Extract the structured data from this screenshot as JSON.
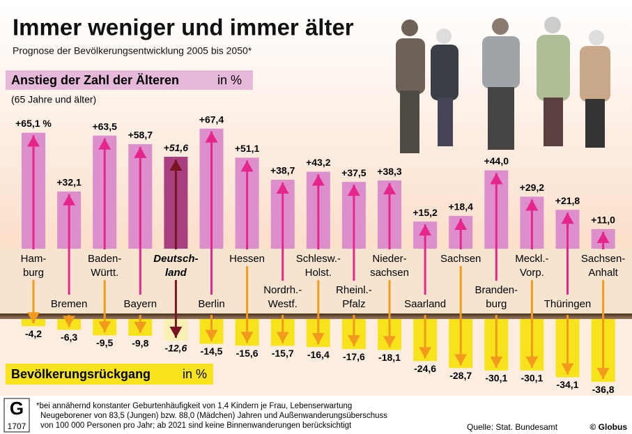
{
  "title": "Immer weniger und immer älter",
  "subtitle": "Prognose der Bevölkerungsentwicklung 2005 bis 2050*",
  "chart_data": {
    "type": "bar",
    "categories": [
      [
        "Ham-",
        "burg"
      ],
      [
        "Bremen"
      ],
      [
        "Baden-",
        "Württ."
      ],
      [
        "Bayern"
      ],
      [
        "Deutsch-",
        "land"
      ],
      [
        "Berlin"
      ],
      [
        "Hessen"
      ],
      [
        "Nordrh.-",
        "Westf."
      ],
      [
        "Schlesw.-",
        "Holst."
      ],
      [
        "Rheinl.-",
        "Pfalz"
      ],
      [
        "Nieder-",
        "sachsen"
      ],
      [
        "Saarland"
      ],
      [
        "Sachsen"
      ],
      [
        "Branden-",
        "burg"
      ],
      [
        "Meckl.-",
        "Vorp."
      ],
      [
        "Thüringen"
      ],
      [
        "Sachsen-",
        "Anhalt"
      ]
    ],
    "ylim": [
      0,
      70
    ],
    "y2lim": [
      -40,
      0
    ],
    "highlight": 4,
    "series": [
      {
        "name": "Anstieg der Zahl der Älteren",
        "unit": "in %",
        "note": "(65 Jahre und älter)",
        "axis": "y",
        "color": "#dc8fca",
        "arrow_color": "#e6268f",
        "highlight_color": "#a8407f",
        "highlight_arrow_color": "#7a1420",
        "label_color": "#d6a9c9",
        "values": [
          65.1,
          32.1,
          63.5,
          58.7,
          51.6,
          67.4,
          51.1,
          38.7,
          43.2,
          37.5,
          38.3,
          15.2,
          18.4,
          44.0,
          29.2,
          21.8,
          11.0
        ],
        "value_labels": [
          "+65,1 %",
          "+32,1",
          "+63,5",
          "+58,7",
          "+51,6",
          "+67,4",
          "+51,1",
          "+38,7",
          "+43,2",
          "+37,5",
          "+38,3",
          "+15,2",
          "+18,4",
          "+44,0",
          "+29,2",
          "+21,8",
          "+11,0"
        ]
      },
      {
        "name": "Bevölkerungsrückgang",
        "unit": "in %",
        "axis": "y2",
        "color": "#f7e31b",
        "arrow_color": "#f29a1e",
        "highlight_color": "#f8f0b4",
        "highlight_arrow_color": "#7a1420",
        "label_color": "#f7e31b",
        "values": [
          -4.2,
          -6.3,
          -9.5,
          -9.8,
          -12.6,
          -14.5,
          -15.6,
          -15.7,
          -16.4,
          -17.6,
          -18.1,
          -24.6,
          -28.7,
          -30.1,
          -30.1,
          -34.1,
          -36.8
        ],
        "value_labels": [
          "-4,2",
          "-6,3",
          "-9,5",
          "-9,8",
          "-12,6",
          "-14,5",
          "-15,6",
          "-15,7",
          "-16,4",
          "-17,6",
          "-18,1",
          "-24,6",
          "-28,7",
          "-30,1",
          "-30,1",
          "-34,1",
          "-36,8"
        ]
      }
    ]
  },
  "footnote": [
    "*bei annähernd konstanter Geburtenhäufigkeit von 1,4 Kindern je Frau, Lebenserwartung",
    "Neugeborener von 83,5 (Jungen) bzw. 88,0 (Mädchen) Jahren und Außenwanderungsüberschuss",
    "von 100 000 Personen pro Jahr; ab 2021 sind keine Binnenwanderungen berücksichtigt"
  ],
  "source": "Quelle: Stat. Bundesamt",
  "copyright": "© Globus",
  "logo_number": "1707"
}
